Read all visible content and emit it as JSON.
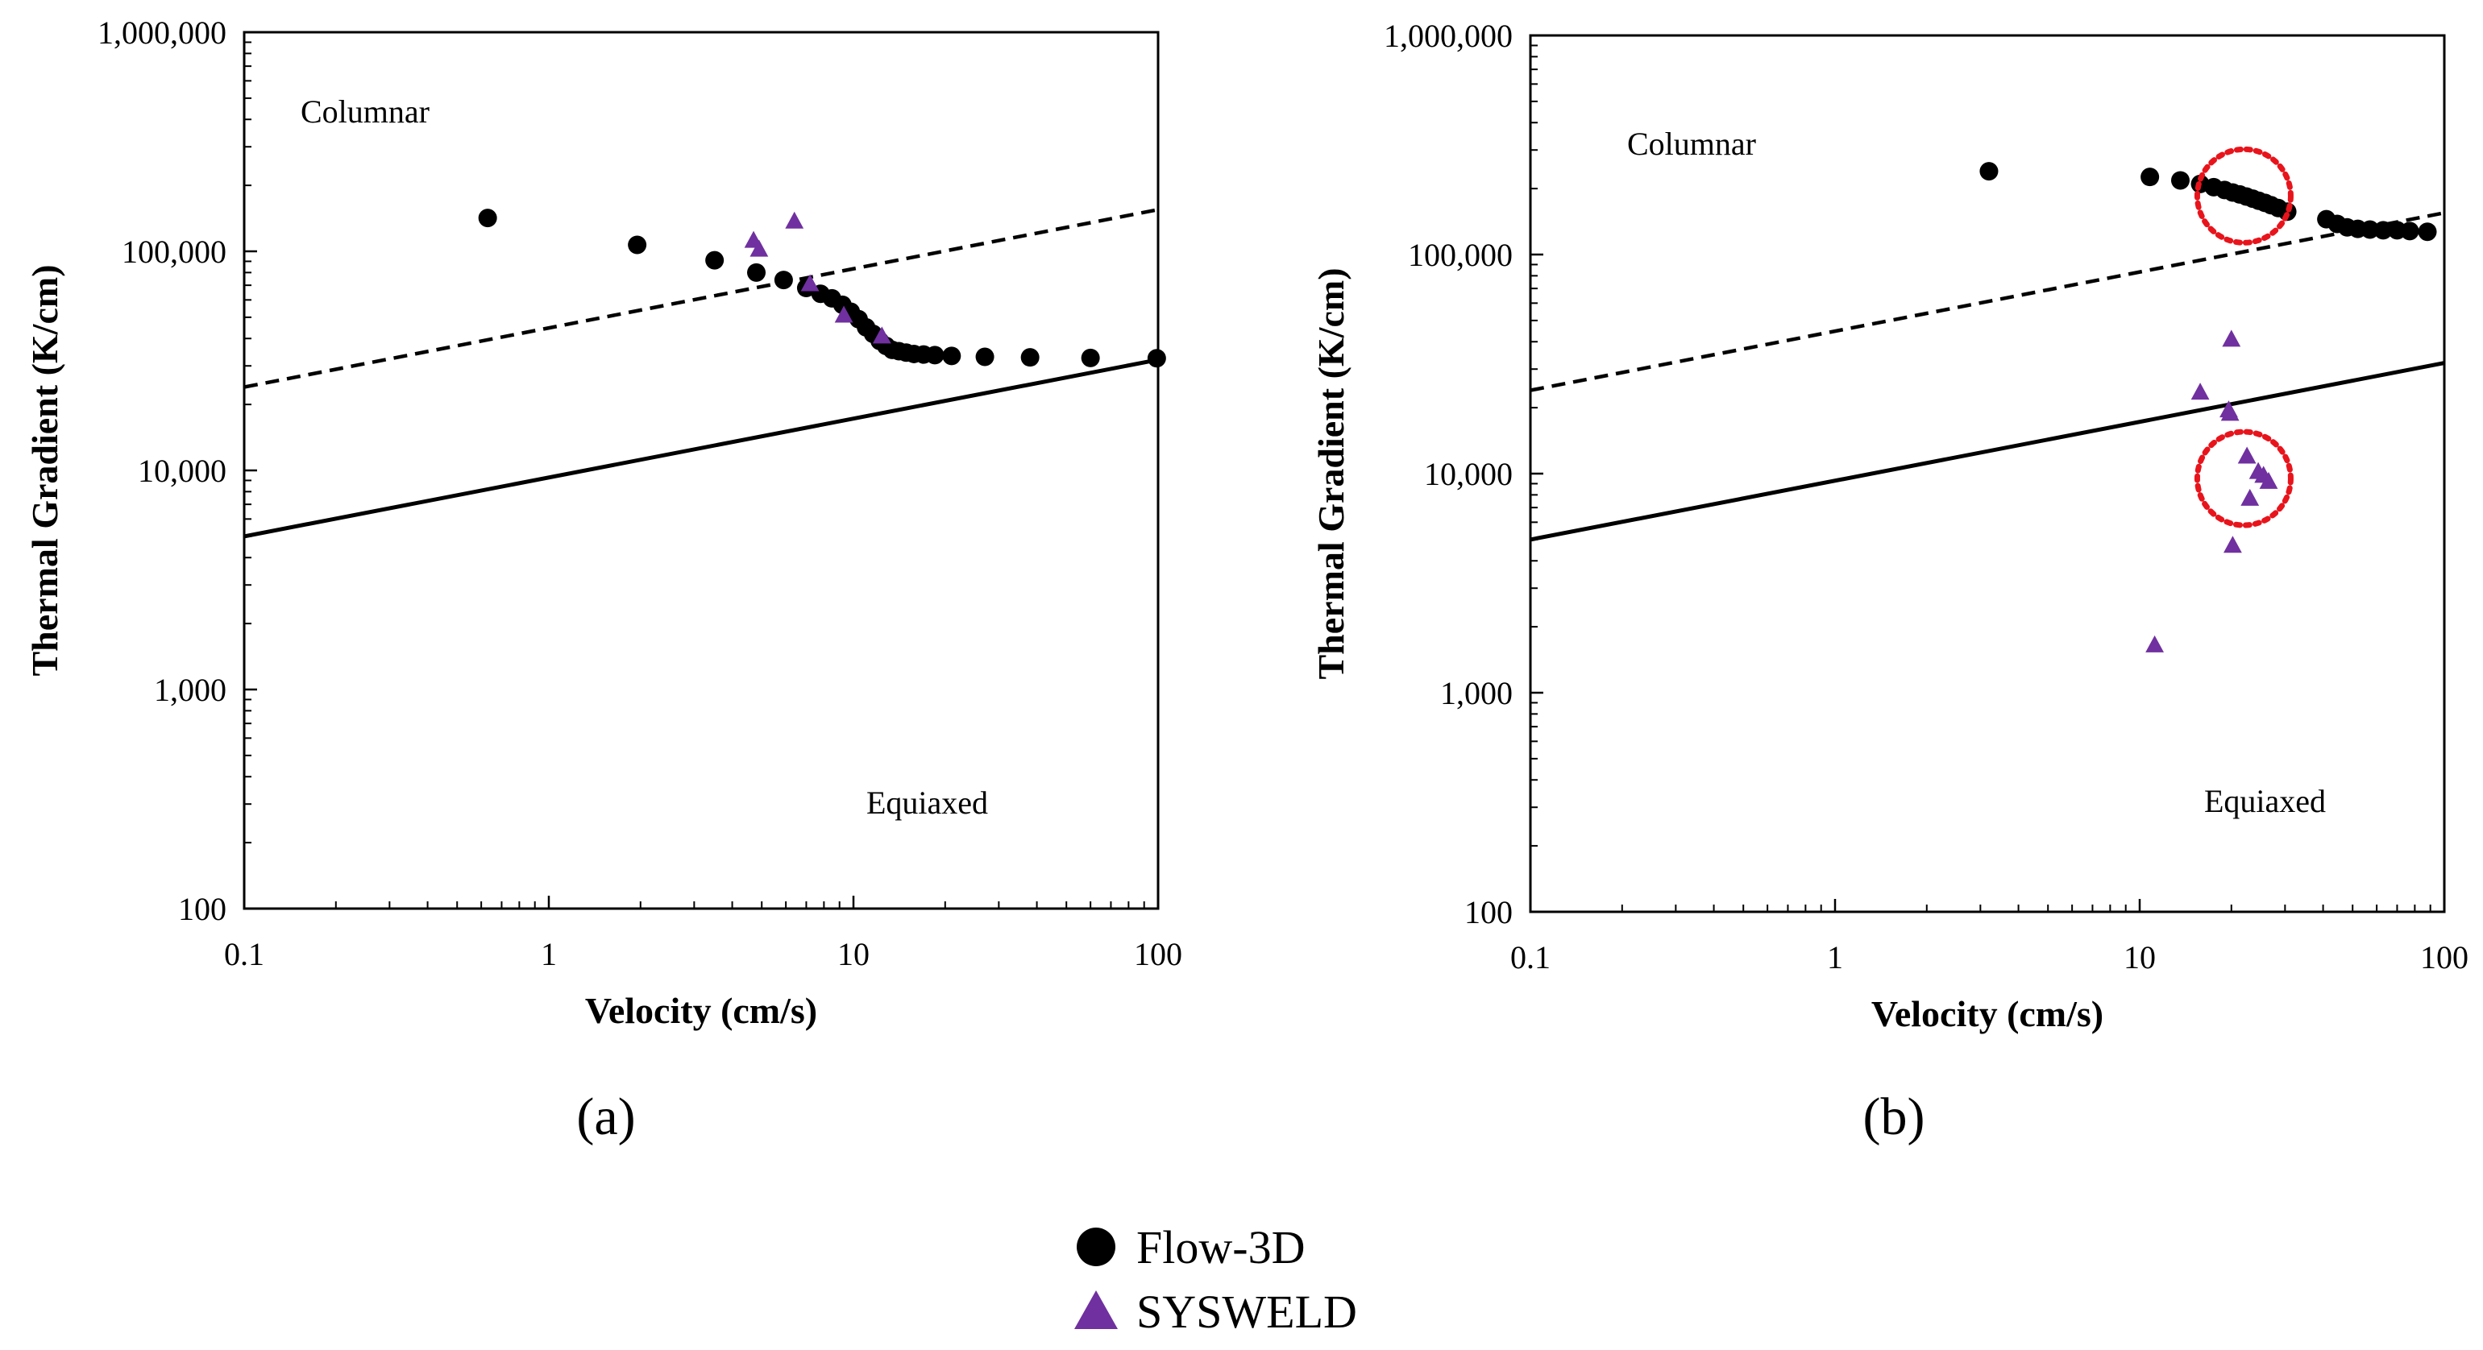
{
  "chart_data": [
    {
      "type": "scatter",
      "panel_label": "(a)",
      "xlabel": "Velocity (cm/s)",
      "ylabel": "Thermal Gradient (K/cm)",
      "x_scale": "log",
      "y_scale": "log",
      "xlim": [
        0.1,
        100
      ],
      "ylim": [
        100,
        1000000
      ],
      "x_ticks": [
        "0.1",
        "1",
        "10",
        "100"
      ],
      "y_ticks": [
        "100",
        "1,000",
        "10,000",
        "100,000",
        "1,000,000"
      ],
      "grid": false,
      "region_labels": {
        "upper": "Columnar",
        "lower": "Equiaxed"
      },
      "boundary_lines": [
        {
          "style": "dashed",
          "x": [
            0.1,
            100
          ],
          "y": [
            24000,
            155000
          ]
        },
        {
          "style": "solid",
          "x": [
            0.1,
            100
          ],
          "y": [
            5000,
            32000
          ]
        }
      ],
      "series": [
        {
          "name": "Flow-3D",
          "marker": "circle",
          "color": "#000000",
          "x": [
            0.63,
            1.95,
            3.5,
            4.8,
            5.9,
            7.0,
            7.8,
            8.5,
            9.2,
            9.8,
            10.4,
            11.0,
            11.6,
            12.2,
            12.8,
            13.4,
            14.1,
            14.9,
            15.8,
            17.0,
            18.5,
            21.0,
            27.0,
            38.0,
            60.0,
            99.0
          ],
          "y": [
            142000,
            107000,
            91000,
            80000,
            74000,
            68000,
            64000,
            61000,
            57000,
            53000,
            49000,
            45000,
            42000,
            39000,
            37000,
            35500,
            35000,
            34500,
            34000,
            33800,
            33600,
            33300,
            33000,
            32800,
            32600,
            32500
          ]
        },
        {
          "name": "SYSWELD",
          "marker": "triangle",
          "color": "#7030a0",
          "x": [
            4.7,
            4.9,
            6.4,
            7.2,
            9.3,
            12.4
          ],
          "y": [
            112000,
            102000,
            137000,
            71000,
            51000,
            41000
          ]
        }
      ]
    },
    {
      "type": "scatter",
      "panel_label": "(b)",
      "xlabel": "Velocity (cm/s)",
      "ylabel": "Thermal Gradient (K/cm)",
      "x_scale": "log",
      "y_scale": "log",
      "xlim": [
        0.1,
        100
      ],
      "ylim": [
        100,
        1000000
      ],
      "x_ticks": [
        "0.1",
        "1",
        "10",
        "100"
      ],
      "y_ticks": [
        "100",
        "1,000",
        "10,000",
        "100,000",
        "1,000,000"
      ],
      "grid": false,
      "region_labels": {
        "upper": "Columnar",
        "lower": "Equiaxed"
      },
      "boundary_lines": [
        {
          "style": "dashed",
          "x": [
            0.1,
            100
          ],
          "y": [
            24000,
            155000
          ]
        },
        {
          "style": "solid",
          "x": [
            0.1,
            100
          ],
          "y": [
            5000,
            32000
          ]
        }
      ],
      "highlight_circles": [
        {
          "x": 22.0,
          "y": 185000,
          "color": "#e8141c"
        },
        {
          "x": 22.0,
          "y": 9500,
          "color": "#e8141c"
        }
      ],
      "series": [
        {
          "name": "Flow-3D",
          "marker": "circle",
          "color": "#000000",
          "x": [
            3.2,
            10.8,
            13.6,
            15.8,
            17.5,
            19.0,
            20.2,
            21.3,
            22.4,
            23.5,
            24.6,
            25.8,
            27.0,
            28.5,
            30.5,
            41.0,
            44.5,
            48.0,
            52.0,
            57.0,
            63.0,
            70.0,
            77.0,
            88.0
          ],
          "y": [
            240000,
            226000,
            218000,
            210000,
            203000,
            197000,
            192000,
            188000,
            184000,
            180000,
            176000,
            172000,
            168000,
            163000,
            157000,
            145000,
            138000,
            133000,
            131000,
            130000,
            129000,
            129000,
            128000,
            127000
          ]
        },
        {
          "name": "SYSWELD",
          "marker": "triangle",
          "color": "#7030a0",
          "x": [
            11.2,
            15.8,
            19.6,
            19.8,
            20.0,
            20.2,
            22.5,
            23.0,
            24.5,
            25.5,
            26.5
          ],
          "y": [
            1650,
            23500,
            19500,
            18800,
            41000,
            4700,
            12000,
            7700,
            10200,
            9800,
            9200
          ]
        }
      ]
    }
  ],
  "legend": [
    {
      "label": "Flow-3D",
      "marker": "circle",
      "color": "#000000"
    },
    {
      "label": "SYSWELD",
      "marker": "triangle",
      "color": "#7030a0"
    }
  ]
}
